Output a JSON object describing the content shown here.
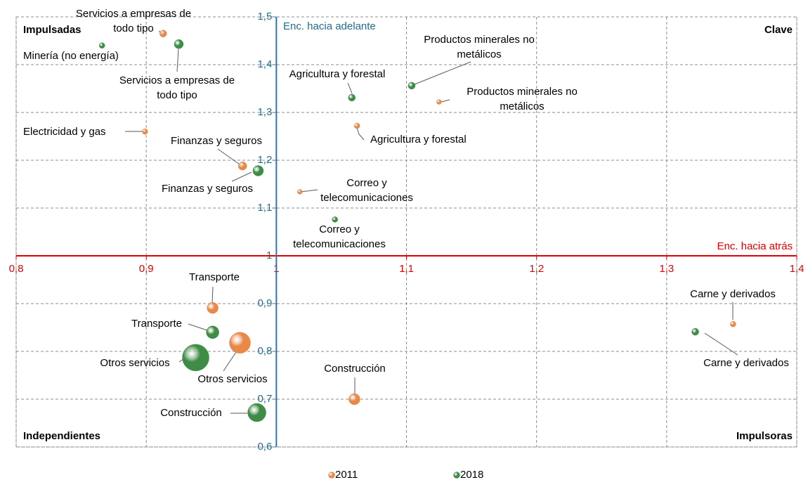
{
  "chart_data": {
    "type": "bubble",
    "x_label": "Enc. hacia atrás",
    "y_label": "Enc. hacia adelante",
    "quadrant_labels": [
      "Impulsadas",
      "Clave",
      "Independientes",
      "Impulsoras"
    ],
    "xlim": [
      0.8,
      1.4
    ],
    "ylim": [
      0.6,
      1.5
    ],
    "xticks": [
      {
        "value": 0.8,
        "label": "0,8"
      },
      {
        "value": 0.9,
        "label": "0,9"
      },
      1,
      {
        "value": 1.1,
        "label": "1,1"
      },
      {
        "value": 1.2,
        "label": "1,2"
      },
      {
        "value": 1.3,
        "label": "1,3"
      },
      {
        "value": 1.4,
        "label": "1,4"
      }
    ],
    "yticks": [
      {
        "value": 0.6,
        "label": "0,6"
      },
      {
        "value": 0.7,
        "label": "0,7"
      },
      {
        "value": 0.8,
        "label": "0,8"
      },
      {
        "value": 0.9,
        "label": "0,9"
      },
      1,
      {
        "value": 1.1,
        "label": "1,1"
      },
      {
        "value": 1.2,
        "label": "1,2"
      },
      {
        "value": 1.3,
        "label": "1,3"
      },
      {
        "value": 1.4,
        "label": "1,4"
      },
      {
        "value": 1.5,
        "label": "1,5"
      }
    ],
    "grid": true,
    "legend": "bottom",
    "series": [
      {
        "name": "2011",
        "color": "#e8894a",
        "x": [
          0.913,
          0.899,
          0.974,
          1.062,
          1.125,
          1.018,
          0.951,
          0.972,
          1.06,
          1.351
        ],
        "values": [
          1.465,
          1.26,
          1.188,
          1.272,
          1.322,
          1.134,
          0.891,
          0.818,
          0.7,
          0.857
        ],
        "sizes": [
          25,
          16,
          36,
          16,
          12,
          12,
          64,
          225,
          64,
          16
        ],
        "labels": [
          [
            "Servicios a empresas de",
            "todo tipo"
          ],
          [
            "Electricidad y gas"
          ],
          [
            "Finanzas y seguros"
          ],
          [
            "Agricultura y forestal"
          ],
          [
            "Productos minerales no",
            "metálicos"
          ],
          [
            "Correo y",
            "telecomunicaciones"
          ],
          [
            "Transporte"
          ],
          [
            "Otros servicios"
          ],
          [
            "Construcción"
          ],
          [
            "Carne y derivados"
          ]
        ]
      },
      {
        "name": "2018",
        "color": "#3f8c46",
        "x": [
          0.866,
          0.925,
          1.058,
          1.104,
          0.986,
          1.045,
          0.951,
          0.938,
          0.985,
          1.322
        ],
        "values": [
          1.44,
          1.443,
          1.331,
          1.356,
          1.178,
          1.076,
          0.84,
          0.787,
          0.672,
          0.841
        ],
        "sizes": [
          16,
          42,
          25,
          25,
          56,
          16,
          81,
          361,
          169,
          25
        ],
        "labels": [
          [
            "Minería (no energía)"
          ],
          [
            "Servicios a empresas de",
            "todo tipo"
          ],
          [
            "Agricultura y forestal"
          ],
          [
            "Productos minerales no",
            "metálicos"
          ],
          [
            "Finanzas y seguros"
          ],
          [
            "Correo y",
            "telecomunicaciones"
          ],
          [
            "Transporte"
          ],
          [
            "Otros servicios"
          ],
          [
            "Construcción"
          ],
          [
            "Carne y derivados"
          ]
        ]
      }
    ]
  }
}
